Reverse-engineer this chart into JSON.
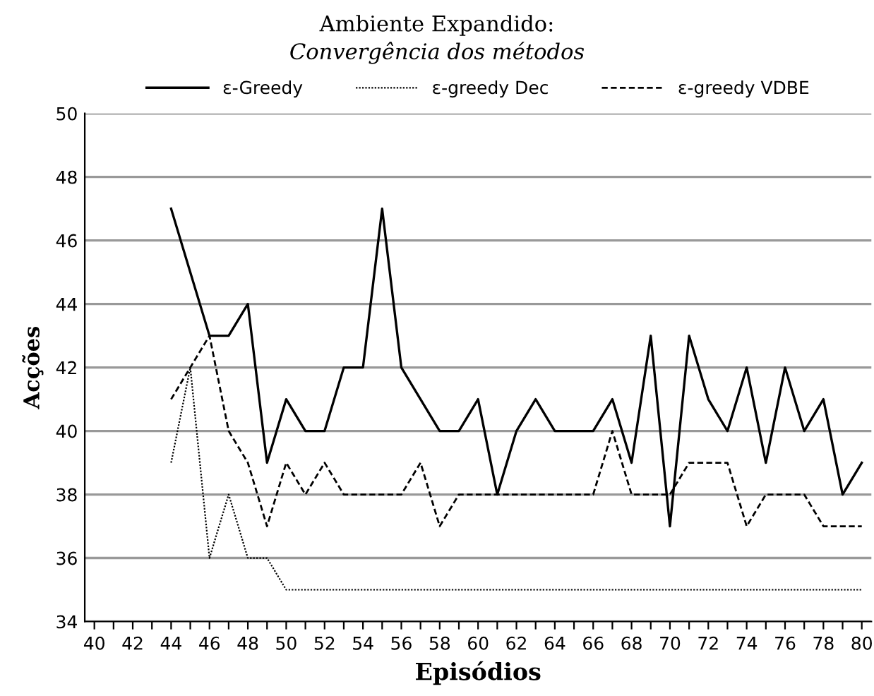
{
  "chart_data": {
    "type": "line",
    "title": "Ambiente Expandido:",
    "subtitle": "Convergência dos métodos",
    "xlabel": "Episódios",
    "ylabel": "Acções",
    "x": [
      44,
      45,
      46,
      47,
      48,
      49,
      50,
      51,
      52,
      53,
      54,
      55,
      56,
      57,
      58,
      59,
      60,
      61,
      62,
      63,
      64,
      65,
      66,
      67,
      68,
      69,
      70,
      71,
      72,
      73,
      74,
      75,
      76,
      77,
      78,
      79,
      80
    ],
    "series": [
      {
        "name": "ε-Greedy",
        "color": "#000000",
        "line_style": "solid",
        "values": [
          47,
          45,
          43,
          43,
          44,
          39,
          41,
          40,
          40,
          42,
          42,
          47,
          42,
          41,
          40,
          40,
          41,
          38,
          40,
          41,
          40,
          40,
          40,
          41,
          39,
          43,
          37,
          43,
          41,
          40,
          42,
          39,
          42,
          40,
          41,
          38,
          39
        ]
      },
      {
        "name": "ε-greedy Dec",
        "color": "#000000",
        "line_style": "dotted",
        "values": [
          39,
          42,
          36,
          38,
          36,
          36,
          35,
          35,
          35,
          35,
          35,
          35,
          35,
          35,
          35,
          35,
          35,
          35,
          35,
          35,
          35,
          35,
          35,
          35,
          35,
          35,
          35,
          35,
          35,
          35,
          35,
          35,
          35,
          35,
          35,
          35,
          35
        ]
      },
      {
        "name": "ε-greedy VDBE",
        "color": "#000000",
        "line_style": "dashed",
        "values": [
          41,
          42,
          43,
          40,
          39,
          37,
          39,
          38,
          39,
          38,
          38,
          38,
          38,
          39,
          37,
          38,
          38,
          38,
          38,
          38,
          38,
          38,
          38,
          40,
          38,
          38,
          38,
          39,
          39,
          39,
          37,
          38,
          38,
          38,
          37,
          37,
          37
        ]
      }
    ],
    "xlim": [
      39.5,
      80.5
    ],
    "ylim": [
      34,
      50
    ],
    "xticks": [
      40,
      {
        "value": 41,
        "label": null
      },
      42,
      {
        "value": 43,
        "label": null
      },
      44,
      {
        "value": 45,
        "label": null
      },
      46,
      {
        "value": 47,
        "label": null
      },
      48,
      {
        "value": 49,
        "label": null
      },
      50,
      {
        "value": 51,
        "label": null
      },
      52,
      {
        "value": 53,
        "label": null
      },
      54,
      {
        "value": 55,
        "label": null
      },
      56,
      {
        "value": 57,
        "label": null
      },
      58,
      {
        "value": 59,
        "label": null
      },
      60,
      {
        "value": 61,
        "label": null
      },
      62,
      {
        "value": 63,
        "label": null
      },
      64,
      {
        "value": 65,
        "label": null
      },
      66,
      {
        "value": 67,
        "label": null
      },
      68,
      {
        "value": 69,
        "label": null
      },
      70,
      {
        "value": 71,
        "label": null
      },
      72,
      {
        "value": 73,
        "label": null
      },
      74,
      {
        "value": 75,
        "label": null
      },
      76,
      {
        "value": 77,
        "label": null
      },
      78,
      {
        "value": 79,
        "label": null
      },
      80
    ],
    "yticks": [
      34,
      36,
      38,
      40,
      42,
      44,
      46,
      48,
      50
    ],
    "grid": "y",
    "legend": "top",
    "marker": "none"
  }
}
